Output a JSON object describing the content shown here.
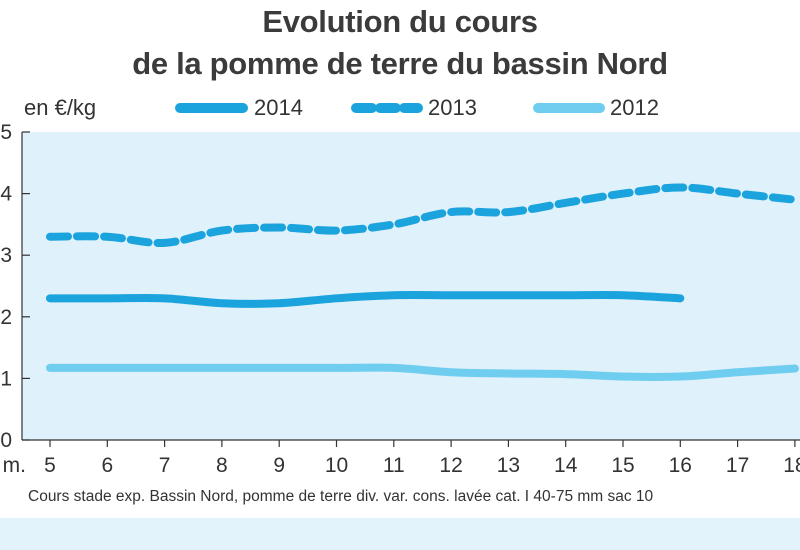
{
  "chart_data": {
    "type": "line",
    "title": "Evolution du cours",
    "subtitle": "de la pomme de terre du bassin Nord",
    "ylabel": "en €/kg",
    "xlabel_fragment": "m.",
    "note": "Cours stade exp. Bassin Nord, pomme de terre div. var. cons. lavée cat. I 40-75 mm sac 10",
    "x": [
      5,
      6,
      7,
      8,
      9,
      10,
      11,
      12,
      13,
      14,
      15,
      16,
      17,
      18
    ],
    "x_tick_labels": [
      "5",
      "6",
      "7",
      "8",
      "9",
      "10",
      "11",
      "12",
      "13",
      "14",
      "15",
      "16",
      "17",
      "18"
    ],
    "y_tick_labels": [
      "5",
      "4",
      "3",
      "2",
      "1",
      "0"
    ],
    "y_ticks": [
      5,
      4,
      3,
      2,
      1,
      0
    ],
    "ylim": [
      0,
      5
    ],
    "grid": false,
    "legend_position": "top",
    "background": "#dff1fa",
    "series": [
      {
        "name": "2014",
        "style": "solid",
        "color": "#1aa3dc",
        "points": [
          [
            5,
            2.3
          ],
          [
            6,
            2.3
          ],
          [
            7,
            2.3
          ],
          [
            8,
            2.22
          ],
          [
            9,
            2.22
          ],
          [
            10,
            2.3
          ],
          [
            11,
            2.35
          ],
          [
            12,
            2.35
          ],
          [
            13,
            2.35
          ],
          [
            14,
            2.35
          ],
          [
            15,
            2.35
          ],
          [
            16,
            2.3
          ]
        ]
      },
      {
        "name": "2013",
        "style": "dashed",
        "color": "#1aa3dc",
        "points": [
          [
            5,
            3.3
          ],
          [
            6,
            3.3
          ],
          [
            7,
            3.2
          ],
          [
            8,
            3.4
          ],
          [
            9,
            3.45
          ],
          [
            10,
            3.4
          ],
          [
            11,
            3.5
          ],
          [
            12,
            3.7
          ],
          [
            13,
            3.7
          ],
          [
            14,
            3.85
          ],
          [
            15,
            4.0
          ],
          [
            16,
            4.1
          ],
          [
            17,
            4.0
          ],
          [
            18,
            3.9
          ]
        ]
      },
      {
        "name": "2012",
        "style": "solid-light",
        "color": "#6fcdf0",
        "points": [
          [
            5,
            1.17
          ],
          [
            6,
            1.17
          ],
          [
            7,
            1.17
          ],
          [
            8,
            1.17
          ],
          [
            9,
            1.17
          ],
          [
            10,
            1.17
          ],
          [
            11,
            1.17
          ],
          [
            12,
            1.1
          ],
          [
            13,
            1.08
          ],
          [
            14,
            1.07
          ],
          [
            15,
            1.03
          ],
          [
            16,
            1.03
          ],
          [
            17,
            1.1
          ],
          [
            18,
            1.16
          ]
        ]
      }
    ]
  }
}
